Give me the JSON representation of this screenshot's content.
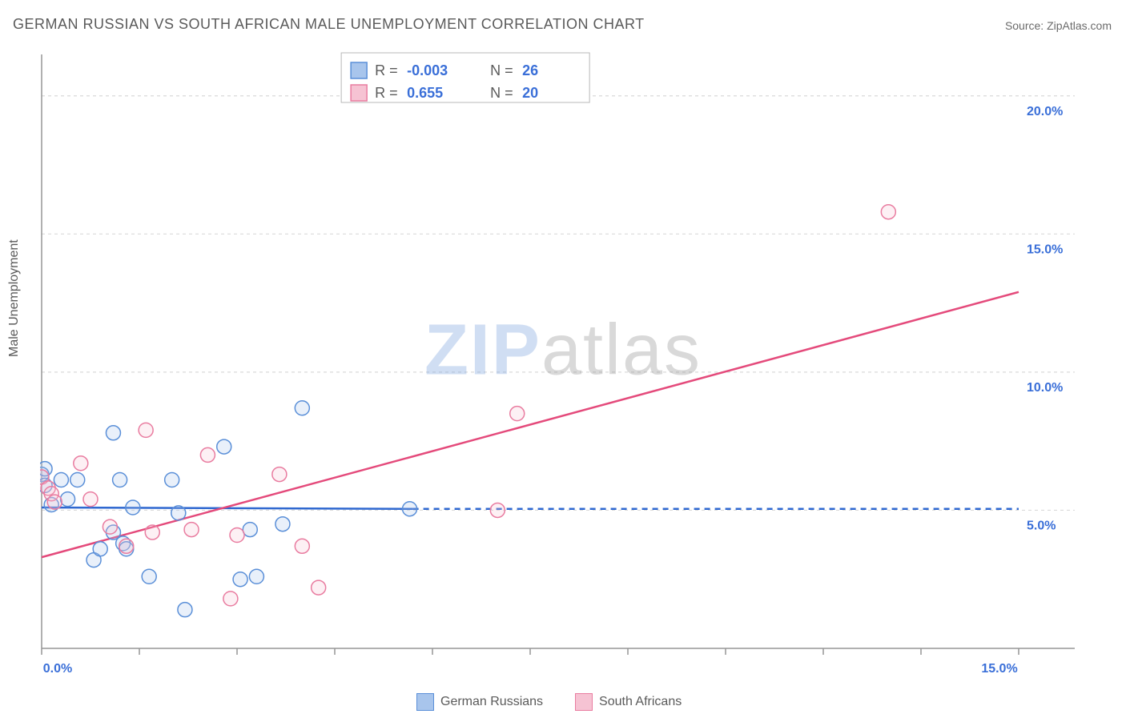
{
  "title": "GERMAN RUSSIAN VS SOUTH AFRICAN MALE UNEMPLOYMENT CORRELATION CHART",
  "source": "Source: ZipAtlas.com",
  "ylabel": "Male Unemployment",
  "watermark_a": "ZIP",
  "watermark_b": "atlas",
  "chart": {
    "type": "scatter",
    "background_color": "#ffffff",
    "grid_color": "#dadada",
    "axis_color": "#969696",
    "xlim": [
      0,
      15
    ],
    "ylim": [
      0,
      21.5
    ],
    "y_ticks": [
      5,
      10,
      15,
      20
    ],
    "y_tick_labels": [
      "5.0%",
      "10.0%",
      "15.0%",
      "20.0%"
    ],
    "x_ticks": [
      0,
      1.5,
      3.0,
      4.5,
      6.0,
      7.5,
      9.0,
      10.5,
      12.0,
      13.5,
      15.0
    ],
    "x_tick_labels_shown": {
      "0": "0.0%",
      "15": "15.0%"
    },
    "marker_radius": 9,
    "marker_stroke_width": 1.5,
    "marker_fill_opacity": 0.25,
    "line_width": 2.5,
    "label_fontsize": 16,
    "label_color": "#3a6fd8",
    "series": [
      {
        "name": "German Russians",
        "color_stroke": "#5a8fd8",
        "color_fill": "#a8c5ec",
        "line_color": "#2f68d0",
        "R": "-0.003",
        "N": "26",
        "trend": {
          "x1": 0,
          "y1": 5.1,
          "x2": 5.7,
          "y2": 5.05,
          "dash_after_x": 5.7,
          "dash_to_x": 15.0
        },
        "points": [
          [
            0.0,
            6.3
          ],
          [
            0.05,
            5.9
          ],
          [
            0.05,
            6.5
          ],
          [
            0.15,
            5.2
          ],
          [
            0.3,
            6.1
          ],
          [
            0.4,
            5.4
          ],
          [
            0.55,
            6.1
          ],
          [
            0.8,
            3.2
          ],
          [
            0.9,
            3.6
          ],
          [
            1.1,
            7.8
          ],
          [
            1.1,
            4.2
          ],
          [
            1.2,
            6.1
          ],
          [
            1.25,
            3.8
          ],
          [
            1.3,
            3.6
          ],
          [
            1.4,
            5.1
          ],
          [
            1.65,
            2.6
          ],
          [
            2.0,
            6.1
          ],
          [
            2.1,
            4.9
          ],
          [
            2.2,
            1.4
          ],
          [
            2.8,
            7.3
          ],
          [
            3.05,
            2.5
          ],
          [
            3.2,
            4.3
          ],
          [
            3.3,
            2.6
          ],
          [
            3.7,
            4.5
          ],
          [
            4.0,
            8.7
          ],
          [
            5.65,
            5.05
          ]
        ]
      },
      {
        "name": "South Africans",
        "color_stroke": "#e97ca0",
        "color_fill": "#f6c3d3",
        "line_color": "#e44a7b",
        "R": "0.655",
        "N": "20",
        "trend": {
          "x1": 0,
          "y1": 3.3,
          "x2": 15.0,
          "y2": 12.9
        },
        "points": [
          [
            0.0,
            6.2
          ],
          [
            0.1,
            5.8
          ],
          [
            0.15,
            5.6
          ],
          [
            0.2,
            5.3
          ],
          [
            0.6,
            6.7
          ],
          [
            0.75,
            5.4
          ],
          [
            1.05,
            4.4
          ],
          [
            1.3,
            3.7
          ],
          [
            1.6,
            7.9
          ],
          [
            1.7,
            4.2
          ],
          [
            2.3,
            4.3
          ],
          [
            2.55,
            7.0
          ],
          [
            2.9,
            1.8
          ],
          [
            3.0,
            4.1
          ],
          [
            3.65,
            6.3
          ],
          [
            4.0,
            3.7
          ],
          [
            4.25,
            2.2
          ],
          [
            7.0,
            5.0
          ],
          [
            7.3,
            8.5
          ],
          [
            13.0,
            15.8
          ]
        ]
      }
    ]
  },
  "top_legend": {
    "border_color": "#b8b8b8",
    "text_color": "#5a5a5a",
    "value_color": "#3a6fd8",
    "rows": [
      {
        "swatch_fill": "#a8c5ec",
        "swatch_stroke": "#5a8fd8",
        "R_label": "R =",
        "R": "-0.003",
        "N_label": "N =",
        "N": "26"
      },
      {
        "swatch_fill": "#f6c3d3",
        "swatch_stroke": "#e97ca0",
        "R_label": "R =",
        "R": " 0.655",
        "N_label": "N =",
        "N": "20"
      }
    ]
  },
  "bottom_legend": [
    {
      "swatch_fill": "#a8c5ec",
      "swatch_stroke": "#5a8fd8",
      "label": "German Russians"
    },
    {
      "swatch_fill": "#f6c3d3",
      "swatch_stroke": "#e97ca0",
      "label": "South Africans"
    }
  ]
}
